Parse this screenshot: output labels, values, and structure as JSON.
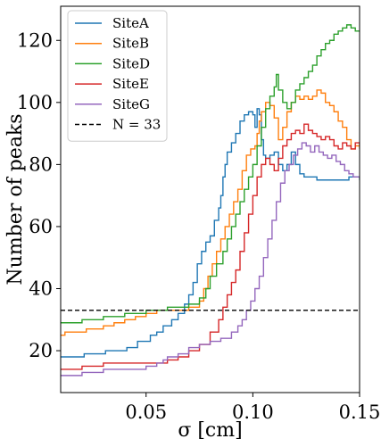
{
  "chart_data": {
    "type": "line",
    "step": true,
    "xlabel": "σ [cm]",
    "ylabel": "Number of peaks",
    "xlim": [
      0.01,
      0.15
    ],
    "ylim": [
      6.5,
      131
    ],
    "xticks": [
      0.05,
      0.1,
      0.15
    ],
    "xtick_labels": [
      "0.05",
      "0.10",
      "0.15"
    ],
    "yticks": [
      20,
      40,
      60,
      80,
      100,
      120
    ],
    "ytick_labels": [
      "20",
      "40",
      "60",
      "80",
      "100",
      "120"
    ],
    "grid": false,
    "legend_position": "upper-left",
    "series": [
      {
        "name": "SiteA",
        "color": "#1f77b4",
        "points": [
          [
            0.01,
            18
          ],
          [
            0.02,
            18
          ],
          [
            0.021,
            19
          ],
          [
            0.03,
            19
          ],
          [
            0.031,
            20
          ],
          [
            0.04,
            20
          ],
          [
            0.041,
            21
          ],
          [
            0.045,
            21
          ],
          [
            0.046,
            23
          ],
          [
            0.05,
            23
          ],
          [
            0.052,
            25
          ],
          [
            0.055,
            26
          ],
          [
            0.058,
            28
          ],
          [
            0.062,
            30
          ],
          [
            0.065,
            32
          ],
          [
            0.068,
            35
          ],
          [
            0.07,
            38
          ],
          [
            0.072,
            42
          ],
          [
            0.074,
            48
          ],
          [
            0.076,
            52
          ],
          [
            0.078,
            55
          ],
          [
            0.08,
            57
          ],
          [
            0.082,
            62
          ],
          [
            0.084,
            66
          ],
          [
            0.085,
            70
          ],
          [
            0.086,
            76
          ],
          [
            0.087,
            80
          ],
          [
            0.088,
            84
          ],
          [
            0.09,
            87
          ],
          [
            0.092,
            90
          ],
          [
            0.094,
            94
          ],
          [
            0.096,
            96
          ],
          [
            0.098,
            97
          ],
          [
            0.1,
            96
          ],
          [
            0.101,
            92
          ],
          [
            0.102,
            98
          ],
          [
            0.103,
            96
          ],
          [
            0.104,
            88
          ],
          [
            0.105,
            83
          ],
          [
            0.106,
            82
          ],
          [
            0.108,
            83
          ],
          [
            0.11,
            84
          ],
          [
            0.112,
            80
          ],
          [
            0.114,
            78
          ],
          [
            0.116,
            80
          ],
          [
            0.118,
            84
          ],
          [
            0.12,
            80
          ],
          [
            0.122,
            77
          ],
          [
            0.124,
            76
          ],
          [
            0.13,
            75
          ],
          [
            0.14,
            75
          ],
          [
            0.145,
            76
          ],
          [
            0.15,
            75
          ]
        ]
      },
      {
        "name": "SiteB",
        "color": "#ff7f0e",
        "points": [
          [
            0.01,
            25
          ],
          [
            0.012,
            26
          ],
          [
            0.02,
            26
          ],
          [
            0.022,
            27
          ],
          [
            0.03,
            28
          ],
          [
            0.035,
            29
          ],
          [
            0.04,
            30
          ],
          [
            0.045,
            31
          ],
          [
            0.05,
            32
          ],
          [
            0.055,
            33
          ],
          [
            0.06,
            33
          ],
          [
            0.065,
            33
          ],
          [
            0.07,
            34
          ],
          [
            0.075,
            36
          ],
          [
            0.077,
            40
          ],
          [
            0.079,
            44
          ],
          [
            0.081,
            48
          ],
          [
            0.083,
            52
          ],
          [
            0.085,
            56
          ],
          [
            0.087,
            60
          ],
          [
            0.089,
            64
          ],
          [
            0.091,
            68
          ],
          [
            0.093,
            72
          ],
          [
            0.095,
            78
          ],
          [
            0.097,
            83
          ],
          [
            0.099,
            85
          ],
          [
            0.101,
            86
          ],
          [
            0.102,
            90
          ],
          [
            0.103,
            94
          ],
          [
            0.104,
            97
          ],
          [
            0.106,
            100
          ],
          [
            0.108,
            99
          ],
          [
            0.11,
            95
          ],
          [
            0.112,
            88
          ],
          [
            0.114,
            92
          ],
          [
            0.116,
            97
          ],
          [
            0.118,
            100
          ],
          [
            0.12,
            102
          ],
          [
            0.122,
            101
          ],
          [
            0.124,
            102
          ],
          [
            0.126,
            101
          ],
          [
            0.128,
            102
          ],
          [
            0.13,
            104
          ],
          [
            0.132,
            103
          ],
          [
            0.134,
            100
          ],
          [
            0.136,
            99
          ],
          [
            0.138,
            97
          ],
          [
            0.14,
            94
          ],
          [
            0.142,
            92
          ],
          [
            0.144,
            88
          ],
          [
            0.146,
            85
          ],
          [
            0.148,
            86
          ],
          [
            0.15,
            85
          ]
        ]
      },
      {
        "name": "SiteD",
        "color": "#2ca02c",
        "points": [
          [
            0.01,
            29
          ],
          [
            0.02,
            30
          ],
          [
            0.03,
            31
          ],
          [
            0.04,
            32
          ],
          [
            0.05,
            33
          ],
          [
            0.06,
            34
          ],
          [
            0.065,
            34
          ],
          [
            0.07,
            35
          ],
          [
            0.075,
            37
          ],
          [
            0.078,
            40
          ],
          [
            0.08,
            44
          ],
          [
            0.083,
            48
          ],
          [
            0.086,
            52
          ],
          [
            0.088,
            56
          ],
          [
            0.09,
            60
          ],
          [
            0.092,
            64
          ],
          [
            0.094,
            68
          ],
          [
            0.096,
            72
          ],
          [
            0.098,
            76
          ],
          [
            0.1,
            80
          ],
          [
            0.102,
            86
          ],
          [
            0.104,
            92
          ],
          [
            0.106,
            98
          ],
          [
            0.108,
            102
          ],
          [
            0.11,
            105
          ],
          [
            0.111,
            109
          ],
          [
            0.112,
            104
          ],
          [
            0.114,
            100
          ],
          [
            0.116,
            98
          ],
          [
            0.118,
            100
          ],
          [
            0.12,
            104
          ],
          [
            0.122,
            106
          ],
          [
            0.124,
            108
          ],
          [
            0.126,
            110
          ],
          [
            0.128,
            112
          ],
          [
            0.13,
            115
          ],
          [
            0.132,
            117
          ],
          [
            0.134,
            119
          ],
          [
            0.136,
            120
          ],
          [
            0.138,
            122
          ],
          [
            0.14,
            123
          ],
          [
            0.142,
            124
          ],
          [
            0.144,
            125
          ],
          [
            0.146,
            124
          ],
          [
            0.148,
            123
          ],
          [
            0.15,
            123
          ]
        ]
      },
      {
        "name": "SiteE",
        "color": "#d62728",
        "points": [
          [
            0.01,
            14
          ],
          [
            0.02,
            15
          ],
          [
            0.03,
            16
          ],
          [
            0.04,
            16
          ],
          [
            0.05,
            16
          ],
          [
            0.055,
            16
          ],
          [
            0.06,
            17
          ],
          [
            0.065,
            18
          ],
          [
            0.07,
            20
          ],
          [
            0.075,
            22
          ],
          [
            0.08,
            26
          ],
          [
            0.084,
            30
          ],
          [
            0.086,
            34
          ],
          [
            0.088,
            38
          ],
          [
            0.09,
            42
          ],
          [
            0.092,
            46
          ],
          [
            0.094,
            52
          ],
          [
            0.096,
            58
          ],
          [
            0.098,
            64
          ],
          [
            0.1,
            70
          ],
          [
            0.102,
            76
          ],
          [
            0.104,
            80
          ],
          [
            0.106,
            82
          ],
          [
            0.108,
            80
          ],
          [
            0.11,
            78
          ],
          [
            0.112,
            82
          ],
          [
            0.114,
            86
          ],
          [
            0.116,
            88
          ],
          [
            0.118,
            90
          ],
          [
            0.12,
            91
          ],
          [
            0.122,
            90
          ],
          [
            0.124,
            93
          ],
          [
            0.126,
            91
          ],
          [
            0.128,
            90
          ],
          [
            0.13,
            89
          ],
          [
            0.132,
            88
          ],
          [
            0.134,
            89
          ],
          [
            0.136,
            88
          ],
          [
            0.138,
            86
          ],
          [
            0.14,
            85
          ],
          [
            0.142,
            87
          ],
          [
            0.144,
            86
          ],
          [
            0.146,
            85
          ],
          [
            0.148,
            87
          ],
          [
            0.15,
            86
          ]
        ]
      },
      {
        "name": "SiteG",
        "color": "#9467bd",
        "points": [
          [
            0.01,
            12
          ],
          [
            0.02,
            13
          ],
          [
            0.03,
            14
          ],
          [
            0.04,
            14
          ],
          [
            0.05,
            15
          ],
          [
            0.055,
            16
          ],
          [
            0.058,
            17
          ],
          [
            0.06,
            18
          ],
          [
            0.065,
            19
          ],
          [
            0.07,
            21
          ],
          [
            0.075,
            22
          ],
          [
            0.08,
            23
          ],
          [
            0.085,
            24
          ],
          [
            0.09,
            26
          ],
          [
            0.093,
            28
          ],
          [
            0.095,
            30
          ],
          [
            0.097,
            33
          ],
          [
            0.099,
            36
          ],
          [
            0.101,
            40
          ],
          [
            0.103,
            44
          ],
          [
            0.105,
            50
          ],
          [
            0.107,
            56
          ],
          [
            0.109,
            62
          ],
          [
            0.111,
            68
          ],
          [
            0.113,
            74
          ],
          [
            0.115,
            78
          ],
          [
            0.117,
            80
          ],
          [
            0.119,
            83
          ],
          [
            0.121,
            85
          ],
          [
            0.123,
            87
          ],
          [
            0.125,
            86
          ],
          [
            0.127,
            84
          ],
          [
            0.129,
            86
          ],
          [
            0.131,
            84
          ],
          [
            0.133,
            83
          ],
          [
            0.135,
            82
          ],
          [
            0.137,
            83
          ],
          [
            0.139,
            81
          ],
          [
            0.141,
            80
          ],
          [
            0.143,
            78
          ],
          [
            0.145,
            77
          ],
          [
            0.147,
            76
          ],
          [
            0.15,
            76
          ]
        ]
      }
    ],
    "hline": {
      "name": "N = 33",
      "y": 33,
      "color": "#000000",
      "style": "dashed"
    }
  }
}
